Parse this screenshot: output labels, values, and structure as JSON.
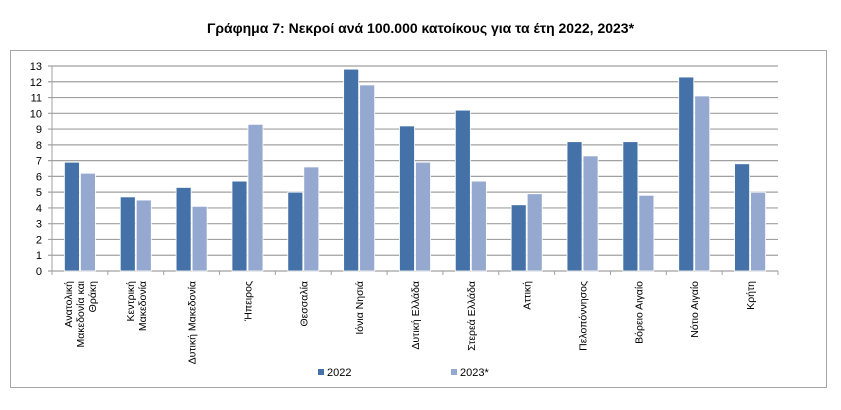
{
  "chart_data": {
    "type": "bar",
    "title": "Γράφημα 7: Νεκροί ανά 100.000 κατοίκους για τα έτη 2022, 2023*",
    "xlabel": "",
    "ylabel": "",
    "ylim": [
      0,
      13
    ],
    "yticks": [
      "0",
      "1",
      "2",
      "3",
      "4",
      "5",
      "6",
      "7",
      "8",
      "9",
      "10",
      "11",
      "12",
      "13"
    ],
    "grid": true,
    "legend_position": "bottom",
    "categories": [
      [
        "Ανατολική",
        "Μακεδονία και",
        "Θράκη"
      ],
      [
        "Κεντρική",
        "Μακεδονία"
      ],
      [
        "Δυτική Μακεδονία"
      ],
      [
        "Ήπειρος"
      ],
      [
        "Θεσσαλία"
      ],
      [
        "Ιόνια Νησιά"
      ],
      [
        "Δυτική Ελλάδα"
      ],
      [
        "Στερεά Ελλάδα"
      ],
      [
        "Αττική"
      ],
      [
        "Πελοπόννησος"
      ],
      [
        "Βόρειο Αιγαίο"
      ],
      [
        "Νότιο Αιγαίο"
      ],
      [
        "Κρήτη"
      ]
    ],
    "series": [
      {
        "name": "2022",
        "color": "#4472a8",
        "values": [
          6.9,
          4.7,
          5.3,
          5.7,
          5.0,
          12.8,
          9.2,
          10.2,
          4.2,
          8.2,
          8.2,
          12.3,
          6.8
        ]
      },
      {
        "name": "2023*",
        "color": "#95a9d0",
        "values": [
          6.2,
          4.5,
          4.1,
          9.3,
          6.6,
          11.8,
          6.9,
          5.7,
          4.9,
          7.3,
          4.8,
          11.1,
          5.0
        ]
      }
    ]
  }
}
